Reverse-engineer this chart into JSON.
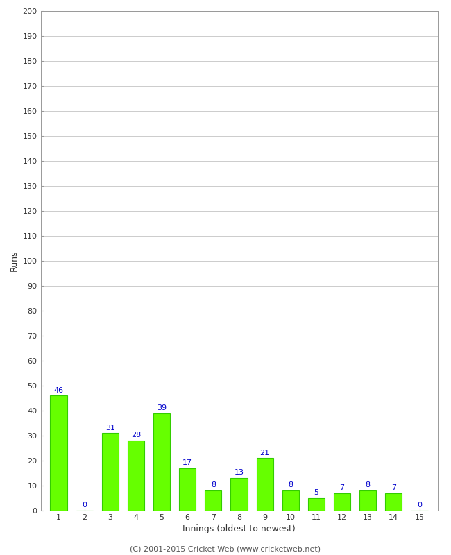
{
  "innings": [
    1,
    2,
    3,
    4,
    5,
    6,
    7,
    8,
    9,
    10,
    11,
    12,
    13,
    14,
    15
  ],
  "runs": [
    46,
    0,
    31,
    28,
    39,
    17,
    8,
    13,
    21,
    8,
    5,
    7,
    8,
    7,
    0
  ],
  "bar_color": "#66ff00",
  "bar_edge_color": "#33cc00",
  "label_color": "#0000cc",
  "xlabel": "Innings (oldest to newest)",
  "ylabel": "Runs",
  "ylim": [
    0,
    200
  ],
  "yticks": [
    0,
    10,
    20,
    30,
    40,
    50,
    60,
    70,
    80,
    90,
    100,
    110,
    120,
    130,
    140,
    150,
    160,
    170,
    180,
    190,
    200
  ],
  "footer": "(C) 2001-2015 Cricket Web (www.cricketweb.net)",
  "background_color": "#ffffff",
  "grid_color": "#cccccc",
  "spine_color": "#999999",
  "tick_color": "#333333",
  "title_fontsize": 9,
  "label_fontsize": 8,
  "footer_fontsize": 8,
  "bar_width": 0.65
}
